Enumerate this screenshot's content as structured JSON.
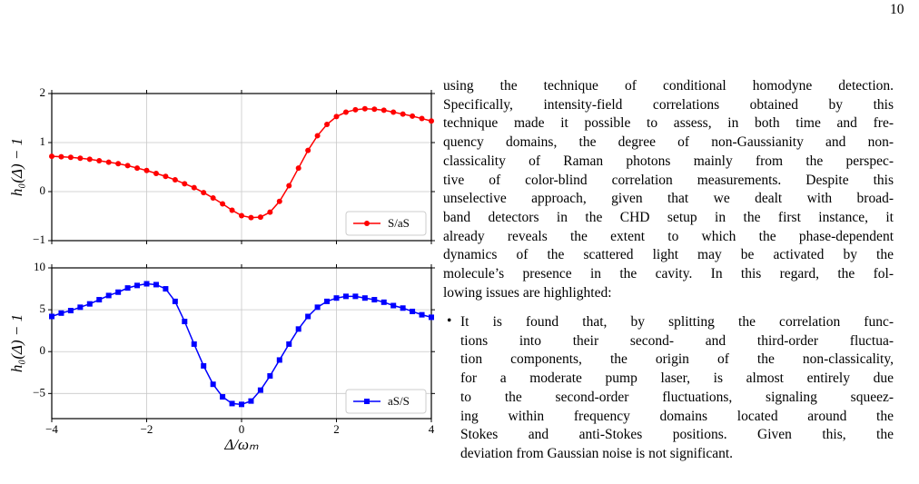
{
  "page_number": "10",
  "chart_data": [
    {
      "type": "line",
      "ylabel": "h₀(Δ) − 1",
      "x": [
        -4,
        -3.8,
        -3.6,
        -3.4,
        -3.2,
        -3,
        -2.8,
        -2.6,
        -2.4,
        -2.2,
        -2,
        -1.8,
        -1.6,
        -1.4,
        -1.2,
        -1,
        -0.8,
        -0.6,
        -0.4,
        -0.2,
        0,
        0.2,
        0.4,
        0.6,
        0.8,
        1,
        1.2,
        1.4,
        1.6,
        1.8,
        2,
        2.2,
        2.4,
        2.6,
        2.8,
        3,
        3.2,
        3.4,
        3.6,
        3.8,
        4
      ],
      "series": [
        {
          "name": "S/aS",
          "color": "#ff0000",
          "marker": "circle",
          "values": [
            0.72,
            0.71,
            0.7,
            0.68,
            0.66,
            0.63,
            0.6,
            0.57,
            0.53,
            0.48,
            0.43,
            0.37,
            0.31,
            0.24,
            0.16,
            0.08,
            -0.02,
            -0.13,
            -0.25,
            -0.38,
            -0.49,
            -0.53,
            -0.52,
            -0.42,
            -0.2,
            0.12,
            0.48,
            0.84,
            1.14,
            1.37,
            1.53,
            1.62,
            1.67,
            1.69,
            1.68,
            1.66,
            1.62,
            1.58,
            1.54,
            1.49,
            1.44
          ]
        }
      ],
      "xlim": [
        -4,
        4
      ],
      "xticks": [
        -4,
        -2,
        0,
        2,
        4
      ],
      "xtick_labels": false,
      "ylim": [
        -1,
        2
      ],
      "yticks": [
        {
          "value": -1,
          "label": "−1"
        },
        0,
        1,
        2
      ],
      "grid": true,
      "legend": "lower right"
    },
    {
      "type": "line",
      "ylabel": "h₀(Δ) − 1",
      "xlabel": "Δ/ωₘ",
      "x": [
        -4,
        -3.8,
        -3.6,
        -3.4,
        -3.2,
        -3,
        -2.8,
        -2.6,
        -2.4,
        -2.2,
        -2,
        -1.8,
        -1.6,
        -1.4,
        -1.2,
        -1,
        -0.8,
        -0.6,
        -0.4,
        -0.2,
        0,
        0.2,
        0.4,
        0.6,
        0.8,
        1,
        1.2,
        1.4,
        1.6,
        1.8,
        2,
        2.2,
        2.4,
        2.6,
        2.8,
        3,
        3.2,
        3.4,
        3.6,
        3.8,
        4
      ],
      "series": [
        {
          "name": "aS/S",
          "color": "#0000ff",
          "marker": "square",
          "values": [
            4.2,
            4.6,
            4.9,
            5.3,
            5.7,
            6.2,
            6.7,
            7.1,
            7.6,
            7.9,
            8.1,
            8,
            7.5,
            6,
            3.6,
            0.9,
            -1.7,
            -3.9,
            -5.4,
            -6.2,
            -6.3,
            -5.9,
            -4.6,
            -2.9,
            -1,
            0.9,
            2.7,
            4.2,
            5.3,
            6,
            6.4,
            6.6,
            6.6,
            6.4,
            6.2,
            5.9,
            5.5,
            5.2,
            4.8,
            4.4,
            4.1
          ]
        }
      ],
      "xlim": [
        -4,
        4
      ],
      "xticks": [
        {
          "value": -4,
          "label": "−4"
        },
        {
          "value": -2,
          "label": "−2"
        },
        0,
        2,
        4
      ],
      "xtick_labels": true,
      "ylim": [
        -8,
        10
      ],
      "yticks": [
        {
          "value": -5,
          "label": "−5"
        },
        0,
        5,
        10
      ],
      "grid": true,
      "legend": "lower right"
    }
  ],
  "paragraph": {
    "lines": [
      "using the technique of conditional homodyne detection.",
      "Specifically, intensity-field correlations obtained by this",
      "technique made it possible to assess, in both time and fre-",
      "quency domains, the degree of non-Gaussianity and non-",
      "classicality of Raman photons mainly from the perspec-",
      "tive of color-blind correlation measurements. Despite this",
      "unselective approach, given that we dealt with broad-",
      "band detectors in the CHD setup in the first instance, it",
      "already reveals the extent to which the phase-dependent",
      "dynamics of the scattered light may be activated by the",
      "molecule’s presence in the cavity. In this regard, the fol-",
      "lowing issues are highlighted:"
    ]
  },
  "bullet": {
    "lines": [
      "It is found that, by splitting the correlation func-",
      "tions into their second- and third-order fluctua-",
      "tion components, the origin of the non-classicality,",
      "for a moderate pump laser, is almost entirely due",
      "to the second-order fluctuations, signaling squeez-",
      "ing within frequency domains located around the",
      "Stokes and anti-Stokes positions. Given this, the",
      "deviation from Gaussian noise is not significant."
    ]
  }
}
